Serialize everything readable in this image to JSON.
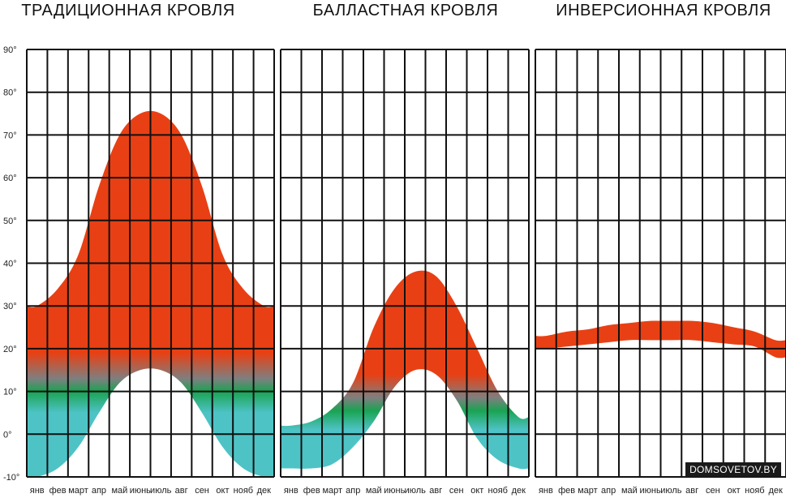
{
  "watermark": "DOMSOVETOV.BY",
  "colors": {
    "hot": "#e84014",
    "mid": "#7f7f7f",
    "green": "#1aa352",
    "cool": "#4ec3c6",
    "grid": "#111111"
  },
  "chart_data": [
    {
      "type": "area",
      "title": "ТРАДИЦИОННАЯ КРОВЛЯ",
      "categories": [
        "янв",
        "фев",
        "март",
        "апр",
        "май",
        "июнь",
        "июль",
        "авг",
        "сен",
        "окт",
        "нояб",
        "дек"
      ],
      "yticks": [
        "-10°",
        "0°",
        "10°",
        "20°",
        "30°",
        "40°",
        "50°",
        "60°",
        "70°",
        "80°",
        "90°"
      ],
      "ylim": [
        -10,
        90
      ],
      "series": [
        {
          "values": [
            -10,
            -8,
            -3,
            5,
            12,
            15,
            15,
            12,
            5,
            -3,
            -8,
            -10
          ]
        },
        {
          "values": [
            30,
            34,
            42,
            58,
            70,
            75,
            75,
            70,
            58,
            42,
            34,
            30
          ]
        }
      ]
    },
    {
      "type": "area",
      "title": "БАЛЛАСТНАЯ КРОВЛЯ",
      "categories": [
        "янв",
        "фев",
        "март",
        "апр",
        "май",
        "июнь",
        "июль",
        "авг",
        "сен",
        "окт",
        "нояб",
        "дек"
      ],
      "ylim": [
        -10,
        90
      ],
      "series": [
        {
          "values": [
            -8,
            -8,
            -7,
            -3,
            3,
            11,
            15,
            14,
            8,
            -1,
            -6,
            -8
          ]
        },
        {
          "values": [
            2,
            3,
            6,
            12,
            25,
            34,
            38,
            37,
            30,
            20,
            10,
            4
          ]
        }
      ]
    },
    {
      "type": "area",
      "title": "ИНВЕРСИОННАЯ КРОВЛЯ",
      "categories": [
        "янв",
        "фев",
        "март",
        "апр",
        "май",
        "июнь",
        "июль",
        "авг",
        "сен",
        "окт",
        "нояб",
        "дек"
      ],
      "ylim": [
        -10,
        90
      ],
      "series": [
        {
          "values": [
            20,
            20.5,
            21,
            21.5,
            22,
            22,
            22,
            22,
            21.5,
            21,
            20.5,
            18
          ]
        },
        {
          "values": [
            23,
            24,
            24.5,
            25.5,
            26,
            26.5,
            26.5,
            26.5,
            26,
            25,
            24,
            22
          ]
        }
      ]
    }
  ]
}
